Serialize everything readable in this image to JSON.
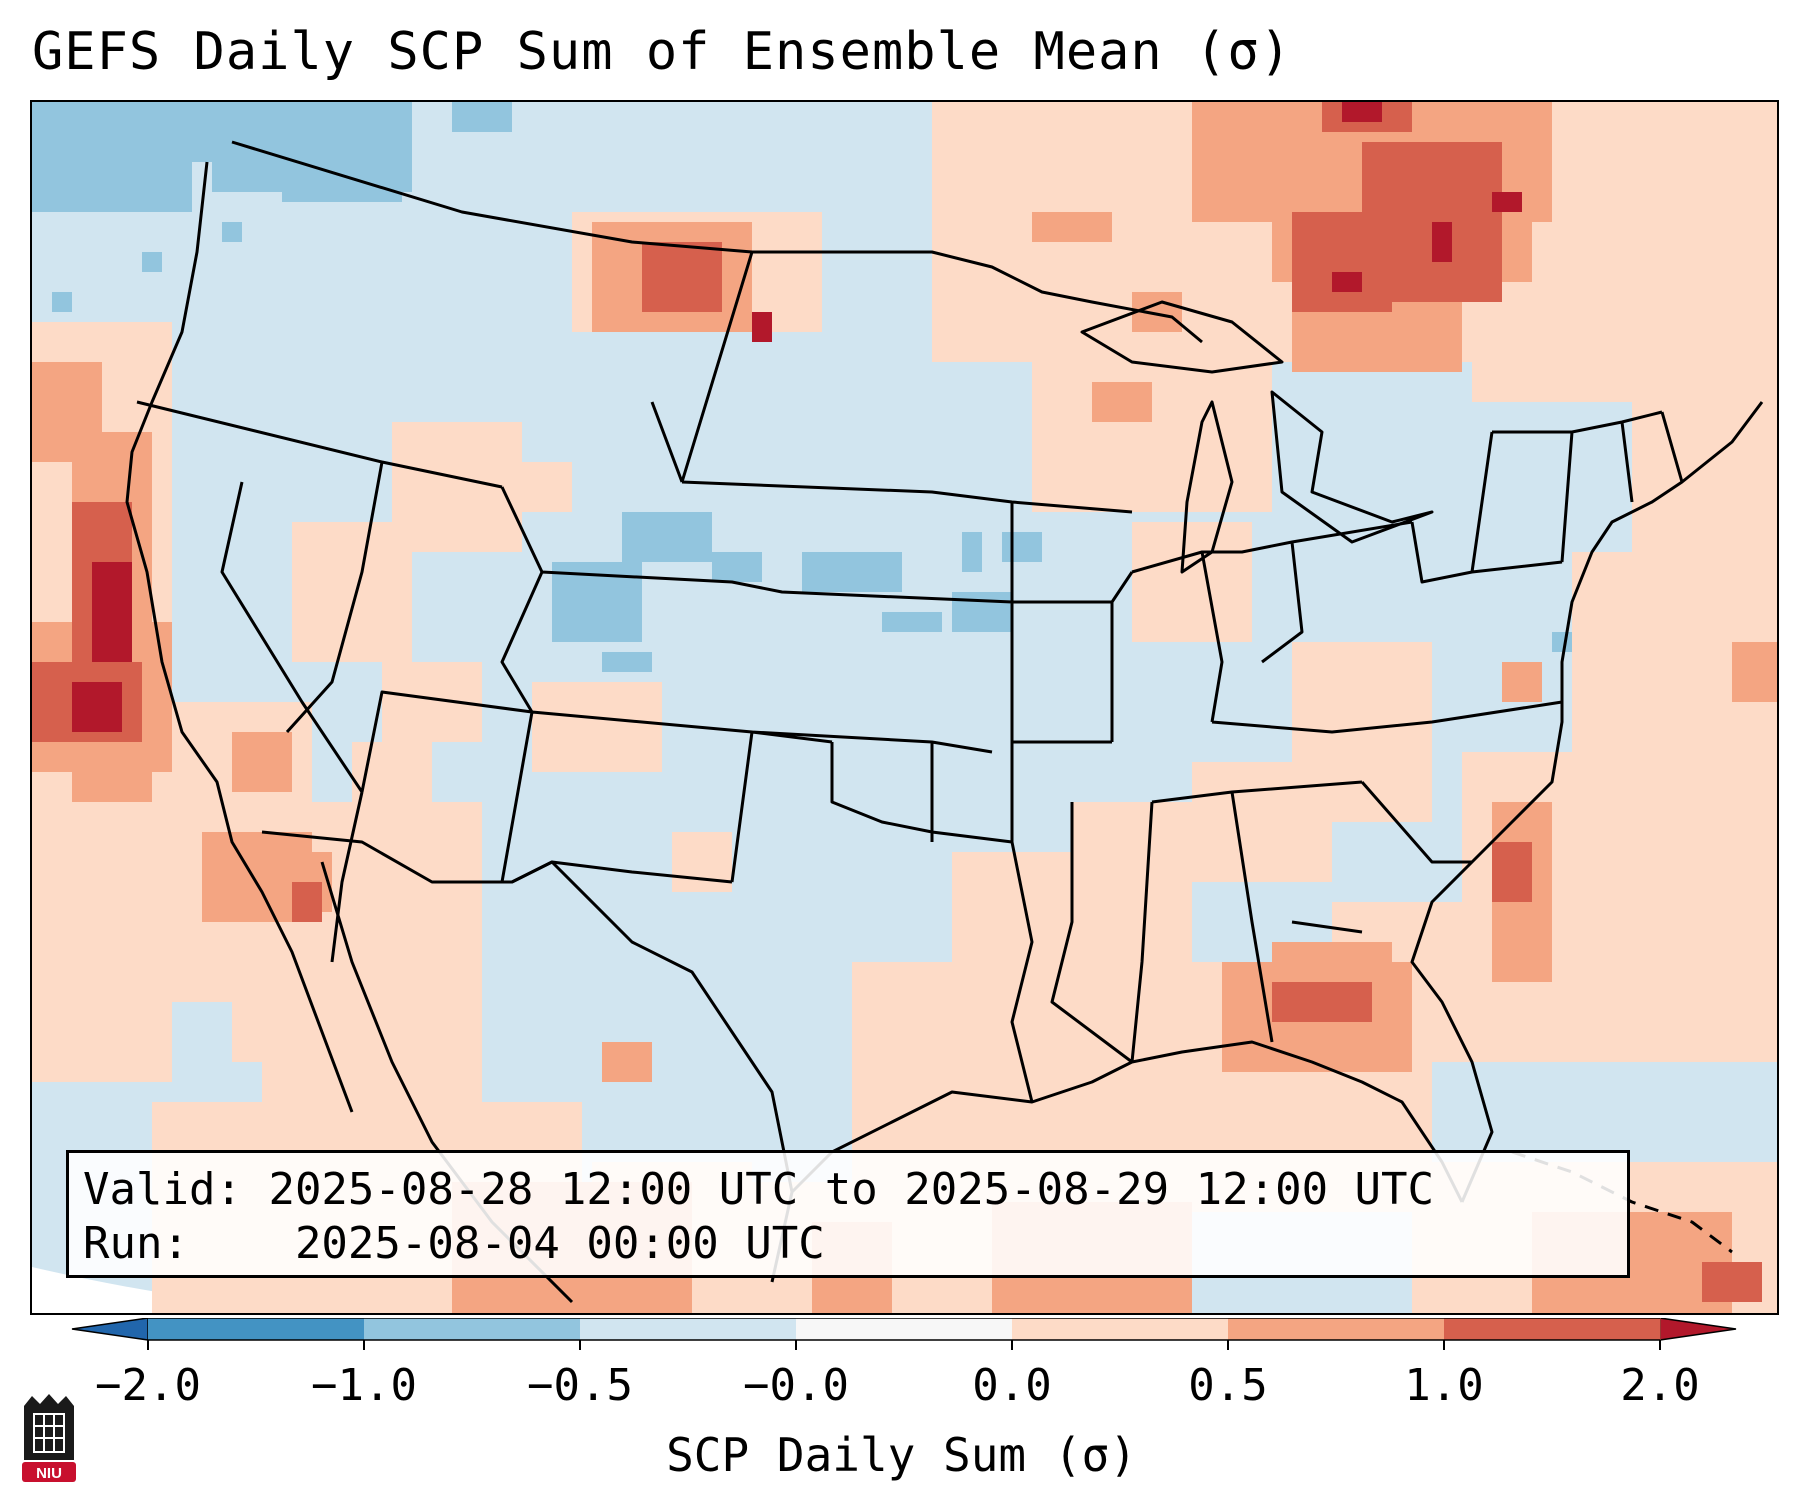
{
  "title": "GEFS Daily SCP Sum of Ensemble Mean (σ)",
  "info": {
    "valid_label": "Valid:",
    "valid_value": "2025-08-28 12:00 UTC to 2025-08-29 12:00 UTC",
    "run_label": "Run:",
    "run_value": "2025-08-04 00:00 UTC"
  },
  "colorbar": {
    "label": "SCP Daily Sum (σ)",
    "ticks": [
      "−2.0",
      "−1.0",
      "−0.5",
      "−0.0",
      "0.0",
      "0.5",
      "1.0",
      "2.0"
    ],
    "bins": [
      {
        "color": "#4393c3"
      },
      {
        "color": "#92c5de"
      },
      {
        "color": "#d1e5f0"
      },
      {
        "color": "#f7f7f7"
      },
      {
        "color": "#fddbc7"
      },
      {
        "color": "#f4a582"
      },
      {
        "color": "#d6604d"
      }
    ],
    "extend_low_color": "#2166ac",
    "extend_high_color": "#b2182b"
  },
  "logo": {
    "text": "NIU",
    "color": "#c8102e"
  },
  "colors": {
    "background_field": "#d1e5f0",
    "weak_negative": "#92c5de",
    "weak_positive": "#fddbc7",
    "moderate_positive": "#f4a582",
    "strong_positive": "#d6604d",
    "extreme_positive": "#b2182b",
    "boundaries": "#000000"
  }
}
